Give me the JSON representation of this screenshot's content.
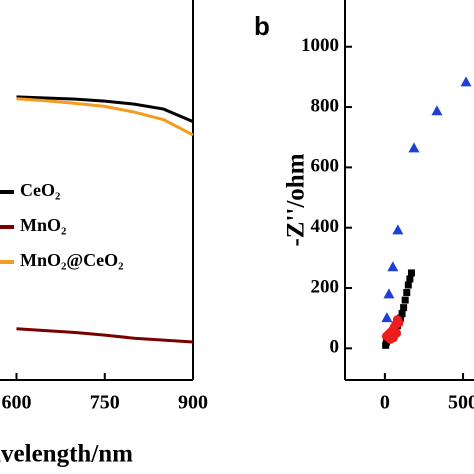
{
  "chart_data": [
    {
      "type": "line",
      "x_label": "Wavelength/nm",
      "x": [
        600,
        650,
        700,
        750,
        800,
        850,
        900
      ],
      "xlim": [
        572,
        900
      ],
      "xticks": [
        600,
        750,
        900
      ],
      "ylim": [
        0,
        100
      ],
      "series": [
        {
          "name": "CeO₂",
          "color": "#000000",
          "values": [
            74.5,
            74.2,
            73.9,
            73.4,
            72.6,
            71.3,
            68
          ]
        },
        {
          "name": "MnO₂",
          "color": "#7a0000",
          "values": [
            13.5,
            13,
            12.5,
            11.8,
            11,
            10.5,
            10
          ]
        },
        {
          "name": "MnO₂@CeO₂",
          "color": "#f39c1f",
          "values": [
            74,
            73.5,
            72.8,
            72,
            70.5,
            68.5,
            64.5
          ]
        }
      ]
    },
    {
      "type": "scatter",
      "panel_label": "b",
      "y_label": "-Z''/ohm",
      "xlim": [
        -255,
        570
      ],
      "xticks": [
        0,
        500
      ],
      "ylim": [
        -105,
        1155
      ],
      "yticks": [
        0,
        200,
        400,
        600,
        800,
        1000
      ],
      "series": [
        {
          "color": "#000000",
          "marker": "square",
          "x": [
            5,
            10,
            15,
            20,
            30,
            40,
            50,
            60,
            70,
            80,
            90,
            100,
            110,
            120,
            130,
            140,
            150,
            160,
            170
          ],
          "values": [
            10,
            20,
            30,
            38,
            45,
            52,
            58,
            62,
            68,
            75,
            85,
            100,
            115,
            135,
            160,
            185,
            210,
            230,
            250
          ]
        },
        {
          "color": "#ee1c1c",
          "marker": "circle",
          "x": [
            10,
            20,
            30,
            40,
            50,
            60,
            70,
            80,
            90,
            75,
            55,
            35
          ],
          "values": [
            40,
            45,
            50,
            55,
            60,
            70,
            80,
            95,
            85,
            50,
            35,
            30
          ]
        },
        {
          "color": "#1f3fd6",
          "marker": "triangle",
          "x": [
            13,
            26,
            51,
            83,
            186,
            333,
            519
          ],
          "values": [
            100,
            179,
            269,
            391,
            663,
            786,
            882
          ]
        }
      ]
    }
  ]
}
